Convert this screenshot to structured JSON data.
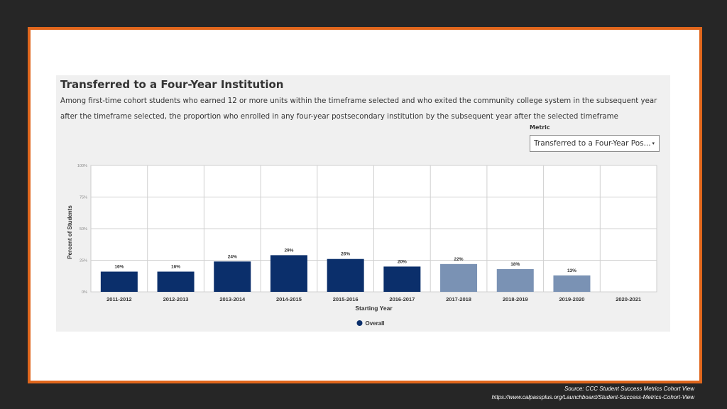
{
  "header": {
    "title": "Transferred to a Four-Year Institution",
    "subtitle": "Among first-time cohort students who earned 12 or more units within the timeframe selected and who exited the community college system in the subsequent year after the timeframe selected, the proportion who enrolled in any four-year postsecondary institution by the subsequent year after the selected timeframe"
  },
  "metric": {
    "label": "Metric",
    "value": "Transferred to a Four-Year Pos...",
    "caret": "▾"
  },
  "chart_data": {
    "type": "bar",
    "title": "Transferred to a Four-Year Institution",
    "xlabel": "Starting Year",
    "ylabel": "Percent of Students",
    "ylim": [
      0,
      100
    ],
    "yticks": [
      "0%",
      "25%",
      "50%",
      "75%",
      "100%"
    ],
    "categories": [
      "2011-2012",
      "2012-2013",
      "2013-2014",
      "2014-2015",
      "2015-2016",
      "2016-2017",
      "2017-2018",
      "2018-2019",
      "2019-2020",
      "2020-2021"
    ],
    "series": [
      {
        "name": "Overall",
        "values": [
          16,
          16,
          24,
          29,
          26,
          20,
          22,
          18,
          13,
          null
        ]
      }
    ],
    "data_labels": [
      "16%",
      "16%",
      "24%",
      "29%",
      "26%",
      "20%",
      "22%",
      "18%",
      "13%",
      ""
    ],
    "bar_colors": [
      "#0b2f6b",
      "#0b2f6b",
      "#0b2f6b",
      "#0b2f6b",
      "#0b2f6b",
      "#0b2f6b",
      "#7a92b4",
      "#7a92b4",
      "#7a92b4",
      "#7a92b4"
    ],
    "grid": true,
    "legend": "bottom-center"
  },
  "footer": {
    "source": "Source:  CCC Student Success Metrics Cohort View",
    "url": "https://www.calpassplus.org/Launchboard/Student-Success-Metrics-Cohort-View"
  }
}
